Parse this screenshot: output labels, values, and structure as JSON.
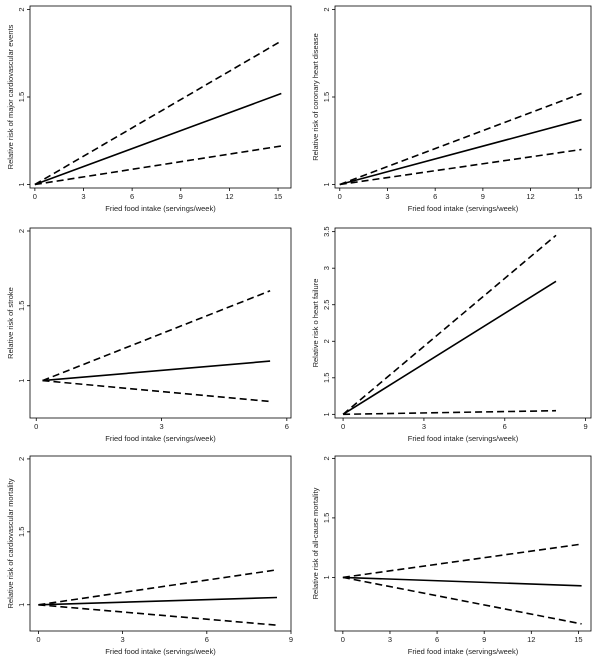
{
  "chart_data": [
    {
      "type": "line",
      "xlabel": "Fried food intake (servings/week)",
      "ylabel": "Relative risk of major cardiovascular events",
      "xticks": [
        0,
        3,
        6,
        9,
        12,
        15
      ],
      "yticks": [
        1,
        1.5,
        2
      ],
      "xlim": [
        -0.3,
        15.8
      ],
      "ylim": [
        0.98,
        2.02
      ],
      "series": [
        {
          "style": "estimate",
          "x": [
            0,
            15.2
          ],
          "y": [
            1.0,
            1.52
          ]
        },
        {
          "style": "upper-ci",
          "x": [
            0,
            15.2
          ],
          "y": [
            1.0,
            1.82
          ]
        },
        {
          "style": "lower-ci",
          "x": [
            0,
            15.2
          ],
          "y": [
            1.0,
            1.22
          ]
        }
      ]
    },
    {
      "type": "line",
      "xlabel": "Fried food intake (servings/week)",
      "ylabel": "Relative risk of coronary heart disease",
      "xticks": [
        0,
        3,
        6,
        9,
        12,
        15
      ],
      "yticks": [
        1,
        1.5,
        2
      ],
      "xlim": [
        -0.3,
        15.8
      ],
      "ylim": [
        0.98,
        2.02
      ],
      "series": [
        {
          "style": "estimate",
          "x": [
            0,
            15.2
          ],
          "y": [
            1.0,
            1.37
          ]
        },
        {
          "style": "upper-ci",
          "x": [
            0,
            15.2
          ],
          "y": [
            1.0,
            1.52
          ]
        },
        {
          "style": "lower-ci",
          "x": [
            0,
            15.2
          ],
          "y": [
            1.0,
            1.2
          ]
        }
      ]
    },
    {
      "type": "line",
      "xlabel": "Fried food intake (servings/week)",
      "ylabel": "Relative risk of stroke",
      "xticks": [
        0,
        3,
        6
      ],
      "yticks": [
        1,
        1.5,
        2
      ],
      "xlim": [
        -0.15,
        6.1
      ],
      "ylim": [
        0.75,
        2.02
      ],
      "series": [
        {
          "style": "estimate",
          "x": [
            0.15,
            5.6
          ],
          "y": [
            1.0,
            1.13
          ]
        },
        {
          "style": "upper-ci",
          "x": [
            0.15,
            5.6
          ],
          "y": [
            1.0,
            1.6
          ]
        },
        {
          "style": "lower-ci",
          "x": [
            0.15,
            5.6
          ],
          "y": [
            1.0,
            0.86
          ]
        }
      ]
    },
    {
      "type": "line",
      "xlabel": "Fried food intake (servings/week)",
      "ylabel": "Relative risk o heart failure",
      "xticks": [
        0,
        3,
        6,
        9
      ],
      "yticks": [
        1,
        1.5,
        2,
        2.5,
        3,
        3.5
      ],
      "xlim": [
        -0.3,
        9.2
      ],
      "ylim": [
        0.95,
        3.55
      ],
      "series": [
        {
          "style": "estimate",
          "x": [
            0,
            7.9
          ],
          "y": [
            1.0,
            2.82
          ]
        },
        {
          "style": "upper-ci",
          "x": [
            0,
            7.9
          ],
          "y": [
            1.0,
            3.45
          ]
        },
        {
          "style": "lower-ci",
          "x": [
            0,
            7.9
          ],
          "y": [
            1.0,
            1.05
          ]
        }
      ]
    },
    {
      "type": "line",
      "xlabel": "Fried food intake (servings/week)",
      "ylabel": "Relative risk of cardiovascular mortality",
      "xticks": [
        0,
        3,
        6,
        9
      ],
      "yticks": [
        1,
        1.5,
        2
      ],
      "xlim": [
        -0.3,
        9.0
      ],
      "ylim": [
        0.82,
        2.02
      ],
      "series": [
        {
          "style": "estimate",
          "x": [
            0,
            8.5
          ],
          "y": [
            1.0,
            1.05
          ]
        },
        {
          "style": "upper-ci",
          "x": [
            0,
            8.5
          ],
          "y": [
            1.0,
            1.24
          ]
        },
        {
          "style": "lower-ci",
          "x": [
            0,
            8.5
          ],
          "y": [
            1.0,
            0.86
          ]
        }
      ]
    },
    {
      "type": "line",
      "xlabel": "Fried food intake (servings/week)",
      "ylabel": "Relative risk of all-cause mortality",
      "xticks": [
        0,
        3,
        6,
        9,
        12,
        15
      ],
      "yticks": [
        1,
        1.5,
        2
      ],
      "xlim": [
        -0.5,
        15.8
      ],
      "ylim": [
        0.55,
        2.02
      ],
      "series": [
        {
          "style": "estimate",
          "x": [
            0,
            15.2
          ],
          "y": [
            1.0,
            0.93
          ]
        },
        {
          "style": "upper-ci",
          "x": [
            0,
            15.2
          ],
          "y": [
            1.0,
            1.28
          ]
        },
        {
          "style": "lower-ci",
          "x": [
            0,
            15.2
          ],
          "y": [
            1.0,
            0.61
          ]
        }
      ]
    }
  ]
}
